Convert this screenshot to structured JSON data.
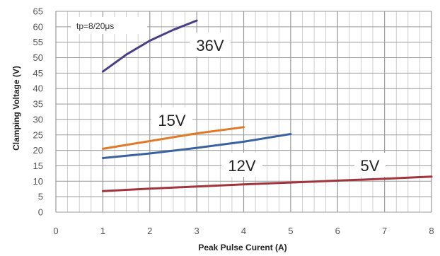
{
  "chart_data": {
    "type": "line",
    "xlabel": "Peak  Pulse Curent (A)",
    "ylabel": "Clamping Voltage (V)",
    "xlim": [
      0,
      8
    ],
    "ylim": [
      0,
      65
    ],
    "xticks": [
      "0",
      "1",
      "2",
      "3",
      "4",
      "5",
      "6",
      "7",
      "8"
    ],
    "yticks": [
      "0",
      "5",
      "10",
      "15",
      "20",
      "25",
      "30",
      "35",
      "40",
      "45",
      "50",
      "55",
      "60",
      "65"
    ],
    "grid": true,
    "annotation": "tp=8/20μs",
    "series": [
      {
        "name": "36V",
        "color": "#4b3c86",
        "points": [
          [
            1,
            45.5
          ],
          [
            1.5,
            51
          ],
          [
            2,
            55.5
          ],
          [
            2.5,
            59
          ],
          [
            3,
            62
          ]
        ]
      },
      {
        "name": "15V",
        "color": "#e07a27",
        "points": [
          [
            1,
            20.5
          ],
          [
            2,
            23
          ],
          [
            3,
            25.5
          ],
          [
            4,
            27.5
          ]
        ]
      },
      {
        "name": "12V",
        "color": "#3a62a0",
        "points": [
          [
            1,
            17.5
          ],
          [
            2,
            19
          ],
          [
            3,
            20.8
          ],
          [
            4,
            22.8
          ],
          [
            5,
            25.3
          ]
        ]
      },
      {
        "name": "5V",
        "color": "#a2343c",
        "points": [
          [
            1,
            6.8
          ],
          [
            2,
            7.6
          ],
          [
            3,
            8.3
          ],
          [
            4,
            9
          ],
          [
            5,
            9.6
          ],
          [
            6,
            10.2
          ],
          [
            7,
            10.8
          ],
          [
            8,
            11.5
          ]
        ]
      }
    ]
  }
}
